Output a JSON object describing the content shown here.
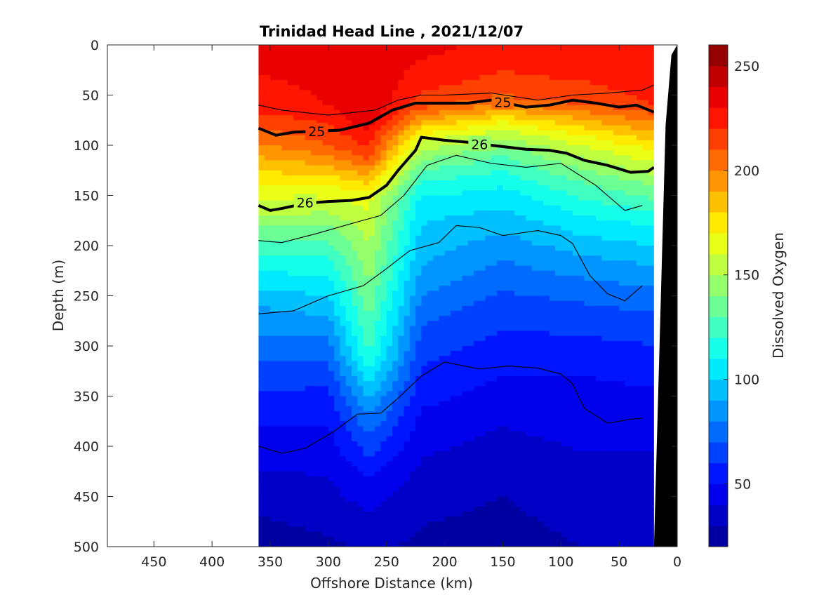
{
  "chart_data": {
    "type": "heatmap",
    "title": "Trinidad Head Line , 2021/12/07",
    "xlabel": "Offshore Distance (km)",
    "ylabel": "Depth (m)",
    "xlim": [
      490,
      0
    ],
    "ylim": [
      0,
      500
    ],
    "x_reversed": true,
    "y_reversed": true,
    "x_ticks": [
      450,
      400,
      350,
      300,
      250,
      200,
      150,
      100,
      50,
      0
    ],
    "y_ticks": [
      0,
      50,
      100,
      150,
      200,
      250,
      300,
      350,
      400,
      450,
      500
    ],
    "colorbar": {
      "label": "Dissolved Oxygen",
      "range": [
        20,
        260
      ],
      "ticks": [
        50,
        100,
        150,
        200,
        250
      ],
      "levels": 24,
      "colormap": [
        "#00008f",
        "#0000ff",
        "#0080ff",
        "#00ffff",
        "#80ff80",
        "#ffff00",
        "#ff8000",
        "#ff0000",
        "#800000"
      ]
    },
    "data_extent_km": [
      360,
      20
    ],
    "oxygen_profiles": [
      {
        "x": 360,
        "depths": [
          0,
          60,
          90,
          140,
          170,
          200,
          260,
          330,
          400,
          470,
          500
        ],
        "values": [
          235,
          225,
          205,
          170,
          150,
          125,
          90,
          65,
          45,
          30,
          25
        ]
      },
      {
        "x": 300,
        "depths": [
          0,
          60,
          100,
          140,
          180,
          220,
          280,
          340,
          400,
          460,
          500
        ],
        "values": [
          235,
          230,
          210,
          170,
          140,
          115,
          85,
          60,
          45,
          35,
          28
        ]
      },
      {
        "x": 265,
        "depths": [
          0,
          70,
          110,
          150,
          200,
          260,
          310,
          360,
          420,
          470,
          500
        ],
        "values": [
          240,
          240,
          215,
          165,
          150,
          135,
          120,
          85,
          55,
          38,
          32
        ]
      },
      {
        "x": 220,
        "depths": [
          0,
          60,
          95,
          130,
          160,
          220,
          280,
          340,
          400,
          460,
          500
        ],
        "values": [
          235,
          215,
          160,
          125,
          105,
          90,
          70,
          55,
          42,
          32,
          28
        ]
      },
      {
        "x": 150,
        "depths": [
          0,
          50,
          80,
          110,
          150,
          200,
          260,
          320,
          380,
          450,
          500
        ],
        "values": [
          225,
          215,
          165,
          130,
          105,
          85,
          65,
          52,
          40,
          30,
          26
        ]
      },
      {
        "x": 80,
        "depths": [
          0,
          55,
          90,
          130,
          170,
          220,
          270,
          330,
          390,
          450,
          500
        ],
        "values": [
          230,
          215,
          170,
          135,
          110,
          85,
          65,
          50,
          42,
          35,
          30
        ]
      },
      {
        "x": 20,
        "depths": [
          0,
          60,
          100,
          140,
          180,
          230,
          280,
          330,
          390,
          450,
          500
        ],
        "values": [
          230,
          220,
          175,
          140,
          110,
          85,
          65,
          52,
          42,
          35,
          30
        ]
      }
    ],
    "density_contours": [
      {
        "label": "25",
        "bold": true,
        "x": [
          360,
          345,
          330,
          310,
          290,
          265,
          245,
          225,
          205,
          180,
          160,
          130,
          110,
          90,
          70,
          50,
          35,
          20
        ],
        "y": [
          83,
          90,
          87,
          86,
          85,
          78,
          65,
          58,
          58,
          58,
          55,
          62,
          60,
          55,
          58,
          62,
          60,
          67
        ]
      },
      {
        "label": "26",
        "bold": true,
        "x": [
          360,
          350,
          340,
          320,
          300,
          280,
          265,
          250,
          240,
          225,
          220,
          200,
          180,
          160,
          130,
          110,
          95,
          80,
          60,
          40,
          25,
          20
        ],
        "y": [
          160,
          165,
          163,
          158,
          156,
          155,
          152,
          140,
          125,
          105,
          92,
          95,
          97,
          100,
          104,
          105,
          108,
          115,
          120,
          127,
          126,
          122
        ]
      },
      {
        "label": "",
        "bold": false,
        "x": [
          360,
          340,
          300,
          260,
          240,
          220,
          200,
          160,
          120,
          90,
          60,
          30,
          20
        ],
        "y": [
          60,
          65,
          70,
          65,
          55,
          50,
          50,
          48,
          55,
          50,
          48,
          45,
          40
        ]
      },
      {
        "label": "",
        "bold": false,
        "x": [
          360,
          340,
          310,
          280,
          255,
          235,
          215,
          190,
          160,
          130,
          100,
          70,
          45,
          30
        ],
        "y": [
          195,
          197,
          188,
          178,
          170,
          150,
          120,
          110,
          118,
          122,
          118,
          140,
          165,
          160
        ]
      },
      {
        "label": "",
        "bold": false,
        "x": [
          360,
          330,
          300,
          270,
          250,
          230,
          205,
          190,
          170,
          150,
          120,
          100,
          90,
          75,
          60,
          45,
          30
        ],
        "y": [
          268,
          265,
          250,
          240,
          223,
          205,
          197,
          180,
          182,
          190,
          185,
          190,
          198,
          230,
          248,
          255,
          240
        ]
      },
      {
        "label": "",
        "bold": false,
        "x": [
          360,
          340,
          320,
          295,
          275,
          255,
          240,
          220,
          200,
          170,
          145,
          120,
          100,
          90,
          80,
          60,
          40,
          30
        ],
        "y": [
          400,
          407,
          402,
          385,
          368,
          367,
          352,
          330,
          316,
          323,
          320,
          322,
          328,
          338,
          362,
          377,
          373,
          372
        ]
      }
    ],
    "bathymetry": {
      "x": [
        30,
        25,
        20,
        10,
        5,
        0
      ],
      "y": [
        500,
        500,
        500,
        80,
        10,
        0
      ]
    }
  }
}
